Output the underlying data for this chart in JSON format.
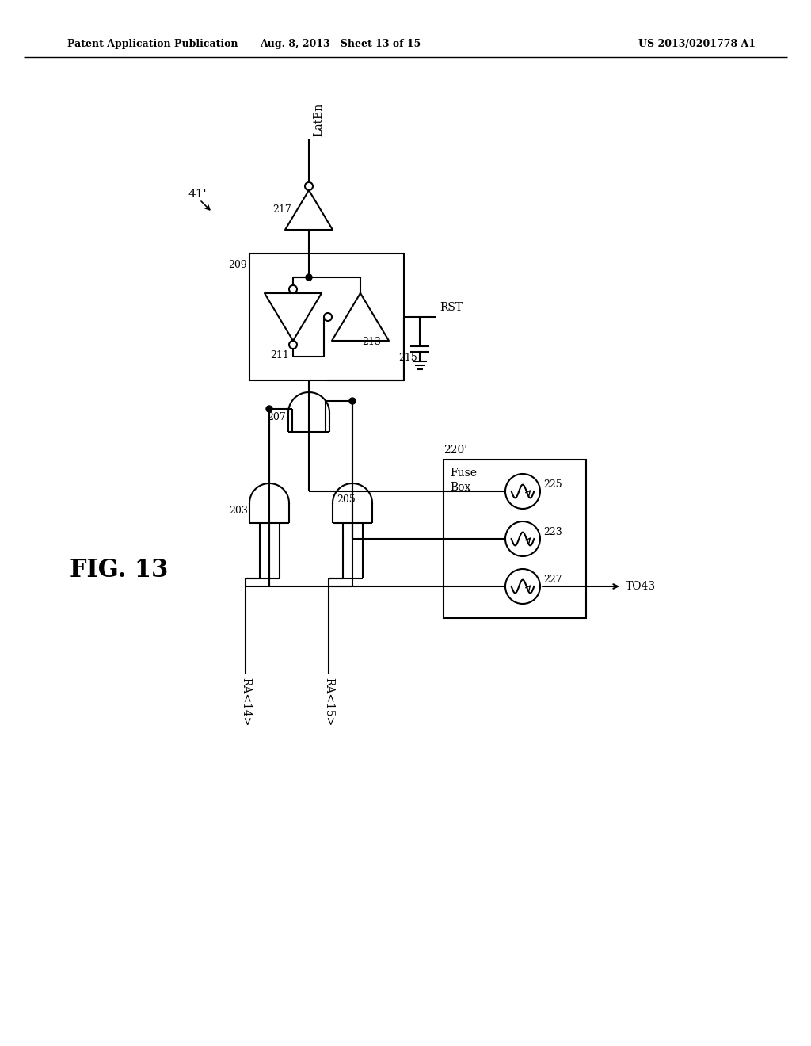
{
  "bg_color": "#ffffff",
  "line_color": "#000000",
  "header_left": "Patent Application Publication",
  "header_mid": "Aug. 8, 2013   Sheet 13 of 15",
  "header_right": "US 2013/0201778 A1",
  "fig_label": "FIG. 13",
  "header_fontsize": 9,
  "fig_fontsize": 22
}
